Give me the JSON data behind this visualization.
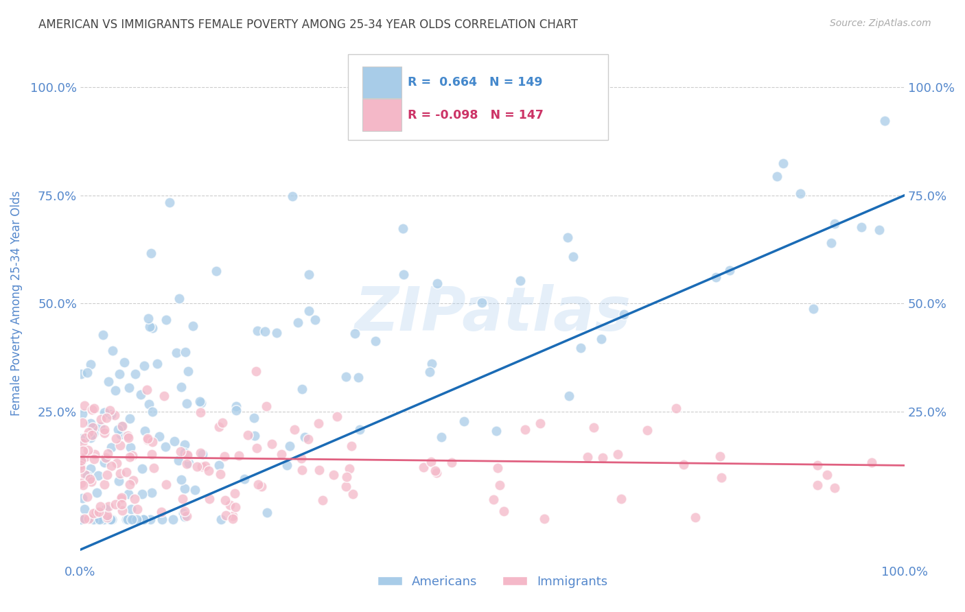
{
  "title": "AMERICAN VS IMMIGRANTS FEMALE POVERTY AMONG 25-34 YEAR OLDS CORRELATION CHART",
  "source": "Source: ZipAtlas.com",
  "ylabel": "Female Poverty Among 25-34 Year Olds",
  "watermark": "ZIPatlas",
  "x_tick_labels": [
    "0.0%",
    "100.0%"
  ],
  "x_tick_positions": [
    0.0,
    1.0
  ],
  "y_tick_labels": [
    "25.0%",
    "50.0%",
    "75.0%",
    "100.0%"
  ],
  "y_tick_positions": [
    0.25,
    0.5,
    0.75,
    1.0
  ],
  "xlim": [
    0.0,
    1.0
  ],
  "ylim": [
    -0.1,
    1.1
  ],
  "americans_R": 0.664,
  "americans_N": 149,
  "immigrants_R": -0.098,
  "immigrants_N": 147,
  "americans_color": "#a8cce8",
  "immigrants_color": "#f4b8c8",
  "americans_line_color": "#1a6bb5",
  "immigrants_line_color": "#e06080",
  "legend_americans_label": "Americans",
  "legend_immigrants_label": "Immigrants",
  "background_color": "#ffffff",
  "grid_color": "#cccccc",
  "title_color": "#444444",
  "axis_label_color": "#5588cc",
  "tick_label_color": "#5588cc",
  "legend_r_color_americans": "#4488cc",
  "legend_r_color_immigrants": "#cc3366",
  "am_line_y0": -0.07,
  "am_line_y1": 0.75,
  "im_line_y0": 0.145,
  "im_line_y1": 0.125
}
